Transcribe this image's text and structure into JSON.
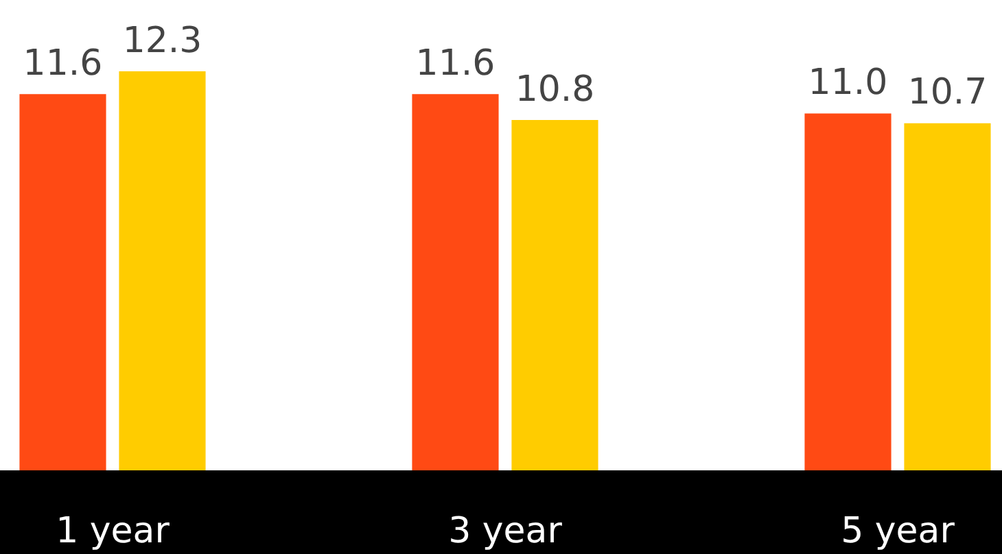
{
  "chart_data": {
    "type": "bar",
    "categories": [
      "1 year",
      "3 year",
      "5 year"
    ],
    "series": [
      {
        "color": "#ff4a14",
        "values": [
          11.6,
          11.6,
          11.0
        ],
        "value_labels": [
          "11.6",
          "11.6",
          "11.0"
        ]
      },
      {
        "color": "#ffcc00",
        "values": [
          12.3,
          10.8,
          10.7
        ],
        "value_labels": [
          "12.3",
          "10.8",
          "10.7"
        ]
      }
    ],
    "ylim": [
      0,
      14.5
    ],
    "tick_labels": "x",
    "grid": false,
    "legend": false
  }
}
